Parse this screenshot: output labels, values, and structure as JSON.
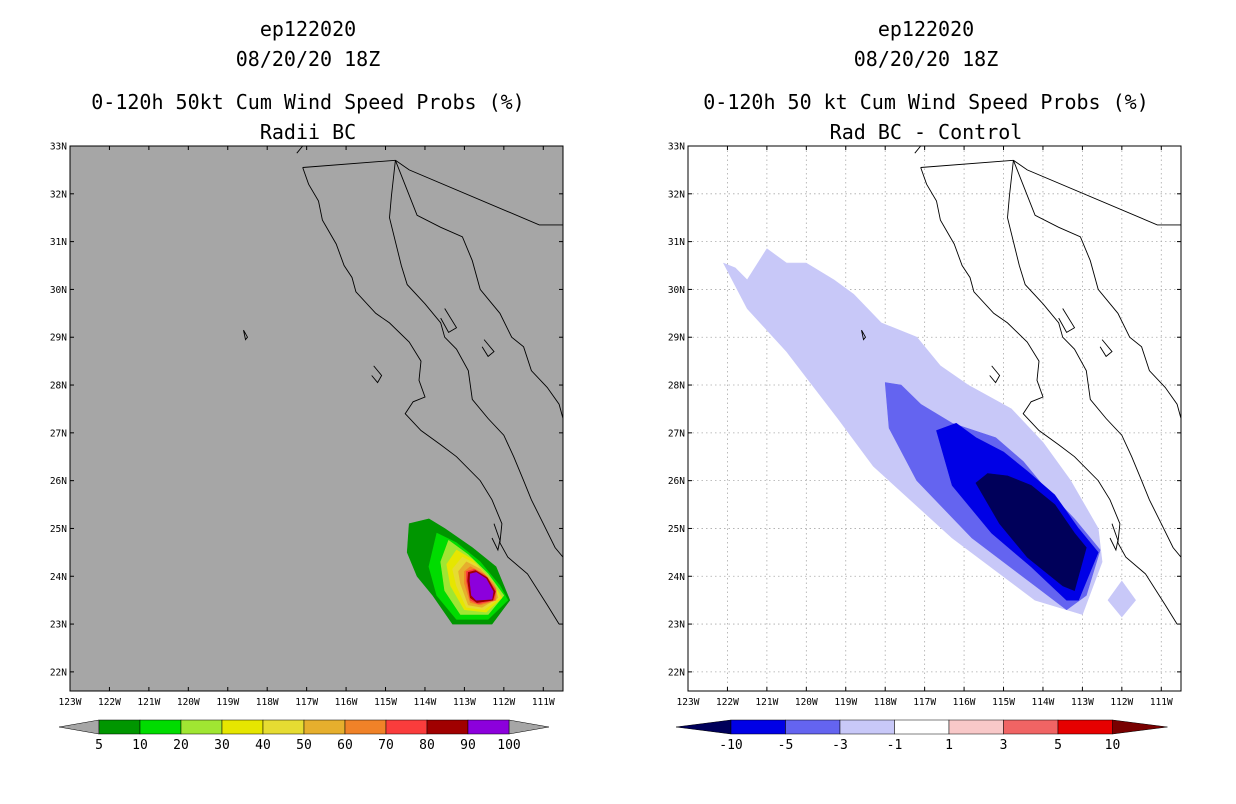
{
  "chart_data": [
    {
      "type": "heatmap",
      "storm_id": "ep122020",
      "datetime": "08/20/20 18Z",
      "title": "0-120h 50kt Cum Wind Speed Probs (%)",
      "subtitle": "Radii BC",
      "x_ticks": [
        "123W",
        "122W",
        "121W",
        "120W",
        "119W",
        "118W",
        "117W",
        "116W",
        "115W",
        "114W",
        "113W",
        "112W",
        "111W"
      ],
      "y_ticks": [
        "22N",
        "23N",
        "24N",
        "25N",
        "26N",
        "27N",
        "28N",
        "29N",
        "30N",
        "31N",
        "32N",
        "33N"
      ],
      "xlim": [
        -123,
        -110.5
      ],
      "ylim": [
        21.6,
        33
      ],
      "grid": false,
      "background": "#a6a6a6",
      "colorbar": {
        "labels": [
          "5",
          "10",
          "20",
          "30",
          "40",
          "50",
          "60",
          "70",
          "80",
          "90",
          "100"
        ],
        "colors": [
          "#009600",
          "#00dc00",
          "#a0e632",
          "#e6e600",
          "#e6dc32",
          "#e6af2d",
          "#f08228",
          "#fa3c3c",
          "#a00000",
          "#8c00dc"
        ],
        "end_colors": [
          "#a6a6a6",
          "#a6a6a6"
        ]
      },
      "contours": [
        {
          "min": 5,
          "color": "#009600",
          "points": [
            [
              -114.4,
              25.1
            ],
            [
              -113.9,
              25.2
            ],
            [
              -113.5,
              25.0
            ],
            [
              -112.8,
              24.6
            ],
            [
              -112.2,
              24.2
            ],
            [
              -111.85,
              23.5
            ],
            [
              -112.3,
              23.0
            ],
            [
              -113.3,
              23.0
            ],
            [
              -113.8,
              23.6
            ],
            [
              -114.2,
              24.0
            ],
            [
              -114.45,
              24.5
            ]
          ]
        },
        {
          "min": 10,
          "color": "#00dc00",
          "points": [
            [
              -113.7,
              24.9
            ],
            [
              -113.2,
              24.7
            ],
            [
              -112.6,
              24.3
            ],
            [
              -112.1,
              23.8
            ],
            [
              -111.9,
              23.5
            ],
            [
              -112.4,
              23.1
            ],
            [
              -113.2,
              23.1
            ],
            [
              -113.7,
              23.6
            ],
            [
              -113.9,
              24.2
            ]
          ]
        },
        {
          "min": 20,
          "color": "#a0e632",
          "points": [
            [
              -113.4,
              24.75
            ],
            [
              -112.9,
              24.45
            ],
            [
              -112.4,
              24.05
            ],
            [
              -112.0,
              23.6
            ],
            [
              -112.4,
              23.2
            ],
            [
              -113.1,
              23.2
            ],
            [
              -113.5,
              23.7
            ],
            [
              -113.6,
              24.3
            ]
          ]
        },
        {
          "min": 30,
          "color": "#e6e600",
          "points": [
            [
              -113.2,
              24.55
            ],
            [
              -112.8,
              24.35
            ],
            [
              -112.35,
              23.95
            ],
            [
              -112.05,
              23.55
            ],
            [
              -112.45,
              23.25
            ],
            [
              -113.0,
              23.3
            ],
            [
              -113.35,
              23.8
            ],
            [
              -113.45,
              24.25
            ]
          ]
        },
        {
          "min": 40,
          "color": "#e6dc32",
          "points": [
            [
              -113.05,
              24.4
            ],
            [
              -112.7,
              24.25
            ],
            [
              -112.3,
              23.9
            ],
            [
              -112.1,
              23.55
            ],
            [
              -112.5,
              23.3
            ],
            [
              -112.95,
              23.35
            ],
            [
              -113.2,
              23.8
            ],
            [
              -113.3,
              24.15
            ]
          ]
        },
        {
          "min": 50,
          "color": "#e6af2d",
          "points": [
            [
              -112.95,
              24.3
            ],
            [
              -112.6,
              24.15
            ],
            [
              -112.25,
              23.85
            ],
            [
              -112.15,
              23.55
            ],
            [
              -112.55,
              23.35
            ],
            [
              -112.9,
              23.4
            ],
            [
              -113.1,
              23.85
            ],
            [
              -113.15,
              24.1
            ]
          ]
        },
        {
          "min": 60,
          "color": "#f08228",
          "points": [
            [
              -112.85,
              24.2
            ],
            [
              -112.5,
              24.05
            ],
            [
              -112.2,
              23.75
            ],
            [
              -112.2,
              23.5
            ],
            [
              -112.6,
              23.4
            ],
            [
              -112.85,
              23.45
            ],
            [
              -113.0,
              23.85
            ],
            [
              -113.0,
              24.1
            ]
          ]
        },
        {
          "min": 70,
          "color": "#fa3c3c",
          "points": [
            [
              -112.75,
              24.15
            ],
            [
              -112.45,
              24.0
            ],
            [
              -112.2,
              23.7
            ],
            [
              -112.25,
              23.5
            ],
            [
              -112.65,
              23.42
            ],
            [
              -112.85,
              23.5
            ],
            [
              -112.95,
              23.9
            ],
            [
              -112.95,
              24.1
            ]
          ]
        },
        {
          "min": 80,
          "color": "#a00000",
          "points": [
            [
              -112.72,
              24.12
            ],
            [
              -112.42,
              23.97
            ],
            [
              -112.22,
              23.68
            ],
            [
              -112.28,
              23.5
            ],
            [
              -112.68,
              23.45
            ],
            [
              -112.85,
              23.55
            ],
            [
              -112.92,
              23.9
            ],
            [
              -112.9,
              24.08
            ]
          ]
        },
        {
          "min": 90,
          "color": "#8c00dc",
          "points": [
            [
              -112.7,
              24.08
            ],
            [
              -112.45,
              23.95
            ],
            [
              -112.27,
              23.68
            ],
            [
              -112.3,
              23.52
            ],
            [
              -112.7,
              23.5
            ],
            [
              -112.82,
              23.6
            ],
            [
              -112.86,
              23.9
            ],
            [
              -112.85,
              24.05
            ]
          ]
        }
      ]
    },
    {
      "type": "heatmap",
      "storm_id": "ep122020",
      "datetime": "08/20/20 18Z",
      "title": "0-120h 50 kt Cum Wind Speed Probs (%)",
      "subtitle": "Rad BC - Control",
      "x_ticks": [
        "123W",
        "122W",
        "121W",
        "120W",
        "119W",
        "118W",
        "117W",
        "116W",
        "115W",
        "114W",
        "113W",
        "112W",
        "111W"
      ],
      "y_ticks": [
        "22N",
        "23N",
        "24N",
        "25N",
        "26N",
        "27N",
        "28N",
        "29N",
        "30N",
        "31N",
        "32N",
        "33N"
      ],
      "xlim": [
        -123,
        -110.5
      ],
      "ylim": [
        21.6,
        33
      ],
      "grid": true,
      "background": "#ffffff",
      "colorbar": {
        "labels": [
          "-10",
          "-5",
          "-3",
          "-1",
          "1",
          "3",
          "5",
          "10"
        ],
        "colors": [
          "#0000e6",
          "#6464f0",
          "#c8c8f8",
          "#ffffff",
          "#f8c8c8",
          "#f06464",
          "#e60000"
        ],
        "end_colors": [
          "#00005a",
          "#780000"
        ]
      },
      "contours": [
        {
          "max": -1,
          "color": "#c8c8f8",
          "points": [
            [
              -122.1,
              30.55
            ],
            [
              -121.8,
              30.45
            ],
            [
              -121.5,
              30.2
            ],
            [
              -121.0,
              30.85
            ],
            [
              -120.5,
              30.55
            ],
            [
              -120.0,
              30.55
            ],
            [
              -119.3,
              30.2
            ],
            [
              -118.8,
              29.9
            ],
            [
              -118.1,
              29.3
            ],
            [
              -117.2,
              29.0
            ],
            [
              -116.6,
              28.4
            ],
            [
              -115.9,
              28.0
            ],
            [
              -114.8,
              27.5
            ],
            [
              -114.0,
              26.8
            ],
            [
              -113.3,
              26.0
            ],
            [
              -112.6,
              25.0
            ],
            [
              -112.5,
              24.3
            ],
            [
              -113.0,
              23.2
            ],
            [
              -114.2,
              23.5
            ],
            [
              -116.3,
              24.8
            ],
            [
              -118.3,
              26.3
            ],
            [
              -119.2,
              27.3
            ],
            [
              -120.5,
              28.7
            ],
            [
              -121.5,
              29.6
            ]
          ]
        },
        {
          "max": -1,
          "color": "#c8c8f8",
          "points": [
            [
              -112.0,
              23.9
            ],
            [
              -111.65,
              23.5
            ],
            [
              -112.0,
              23.15
            ],
            [
              -112.35,
              23.5
            ]
          ]
        },
        {
          "max": -3,
          "color": "#6464f0",
          "points": [
            [
              -118.0,
              28.05
            ],
            [
              -117.6,
              28.0
            ],
            [
              -117.1,
              27.6
            ],
            [
              -116.3,
              27.2
            ],
            [
              -115.2,
              26.9
            ],
            [
              -114.5,
              26.4
            ],
            [
              -113.9,
              25.8
            ],
            [
              -113.2,
              25.2
            ],
            [
              -112.55,
              24.55
            ],
            [
              -112.9,
              23.6
            ],
            [
              -113.4,
              23.3
            ],
            [
              -114.2,
              23.8
            ],
            [
              -115.8,
              24.8
            ],
            [
              -117.2,
              26.0
            ],
            [
              -117.9,
              27.1
            ]
          ]
        },
        {
          "max": -5,
          "color": "#0000e6",
          "points": [
            [
              -116.7,
              27.05
            ],
            [
              -116.2,
              27.2
            ],
            [
              -115.7,
              26.9
            ],
            [
              -115.0,
              26.6
            ],
            [
              -114.4,
              26.2
            ],
            [
              -113.7,
              25.7
            ],
            [
              -113.1,
              25.0
            ],
            [
              -112.6,
              24.5
            ],
            [
              -113.1,
              23.5
            ],
            [
              -113.4,
              23.5
            ],
            [
              -114.3,
              24.2
            ],
            [
              -115.3,
              24.9
            ],
            [
              -116.3,
              25.9
            ]
          ]
        },
        {
          "max": -10,
          "color": "#00005a",
          "points": [
            [
              -115.7,
              25.95
            ],
            [
              -115.4,
              26.15
            ],
            [
              -114.9,
              26.1
            ],
            [
              -114.3,
              25.9
            ],
            [
              -113.7,
              25.5
            ],
            [
              -113.2,
              24.9
            ],
            [
              -112.9,
              24.6
            ],
            [
              -113.2,
              23.7
            ],
            [
              -113.5,
              23.8
            ],
            [
              -114.4,
              24.4
            ],
            [
              -115.1,
              25.1
            ]
          ]
        }
      ]
    }
  ]
}
